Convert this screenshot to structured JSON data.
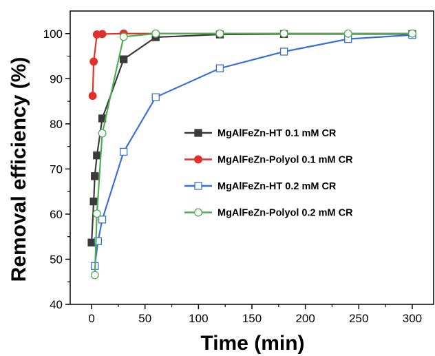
{
  "chart_data": {
    "type": "line",
    "title": "",
    "xlabel": "Time (min)",
    "ylabel": "Removal efficiency (%)",
    "xlim": [
      -20,
      320
    ],
    "ylim": [
      40,
      105
    ],
    "xticks": [
      0,
      50,
      100,
      150,
      200,
      250,
      300
    ],
    "yticks": [
      40,
      50,
      60,
      70,
      80,
      90,
      100
    ],
    "grid": false,
    "legend_position": "center-right",
    "series": [
      {
        "name": "MgAlFeZn-HT 0.1 mM CR",
        "color": "#3a3a3a",
        "marker": "square-filled",
        "x": [
          0,
          2,
          3,
          5,
          10,
          30,
          60,
          120,
          180,
          300
        ],
        "y": [
          53.7,
          62.8,
          68.4,
          73.0,
          81.2,
          94.3,
          99.2,
          99.8,
          99.9,
          99.9
        ]
      },
      {
        "name": "MgAlFeZn-Polyol 0.1 mM CR",
        "color": "#e0322c",
        "marker": "circle-filled",
        "x": [
          1,
          2,
          5,
          10,
          30,
          60,
          120,
          180,
          300
        ],
        "y": [
          86.2,
          93.8,
          99.8,
          99.9,
          100,
          100,
          100,
          100,
          100
        ]
      },
      {
        "name": "MgAlFeZn-HT 0.2 mM CR",
        "color": "#3a6fd8",
        "marker": "square-open",
        "x": [
          3,
          6,
          10,
          30,
          60,
          120,
          180,
          240,
          300
        ],
        "y": [
          48.5,
          54.0,
          58.8,
          73.8,
          85.9,
          92.3,
          96.0,
          98.8,
          99.7
        ]
      },
      {
        "name": "MgAlFeZn-Polyol 0.2 mM CR",
        "color": "#4caf50",
        "marker": "circle-open",
        "x": [
          3,
          5,
          10,
          30,
          60,
          120,
          180,
          240,
          300
        ],
        "y": [
          46.5,
          60.1,
          77.9,
          99.3,
          100,
          100,
          100,
          100,
          100
        ]
      }
    ]
  }
}
